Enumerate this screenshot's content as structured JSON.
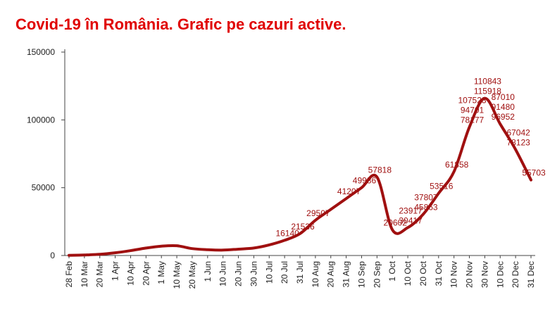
{
  "title": "Covid-19 în România. Grafic pe cazuri active.",
  "colors": {
    "title": "#e00000",
    "series": "#a01010",
    "axis": "#444444",
    "grid": "#bbbbbb"
  },
  "chart_data": {
    "type": "line",
    "title": "Covid-19 în România. Grafic pe cazuri active.",
    "xlabel": "",
    "ylabel": "",
    "ylim": [
      0,
      150000
    ],
    "yticks": [
      0,
      50000,
      100000,
      150000
    ],
    "grid": false,
    "x_tick_labels": [
      "28 Feb",
      "10 Mar",
      "20 Mar",
      "1 Apr",
      "10 Apr",
      "20 Apr",
      "1 May",
      "10 May",
      "20 May",
      "1 Jun",
      "10 Jun",
      "20 Jun",
      "30 Jun",
      "10 Jul",
      "20 Jul",
      "31 Jul",
      "10 Aug",
      "20 Aug",
      "31 Aug",
      "10 Sep",
      "20 Sep",
      "1 Oct",
      "10 Oct",
      "20 Oct",
      "31 Oct",
      "10 Nov",
      "20 Nov",
      "30 Nov",
      "10 Dec",
      "20 Dec",
      "31 Dec"
    ],
    "series": [
      {
        "values": [
          100,
          400,
          900,
          2000,
          3600,
          5500,
          6900,
          7200,
          5100,
          4300,
          4000,
          4700,
          5500,
          7800,
          11200,
          16100,
          26000,
          34000,
          42000,
          50000,
          57818,
          18900,
          20600,
          30417,
          45863,
          61858,
          94701,
          115918,
          96952,
          78123,
          55703
        ],
        "visible_labels": [
          {
            "index": 20,
            "text": "57818"
          },
          {
            "index": 25,
            "text": "61858"
          },
          {
            "index": 24,
            "text": "53516"
          },
          {
            "index": 23,
            "text": "45863"
          },
          {
            "index": 23,
            "text": "37807"
          },
          {
            "index": 22,
            "text": "30417"
          },
          {
            "index": 22,
            "text": "23917"
          },
          {
            "index": 21,
            "text": "20602"
          },
          {
            "index": 26,
            "text": "78177"
          },
          {
            "index": 26,
            "text": "94701"
          },
          {
            "index": 26,
            "text": "107523"
          },
          {
            "index": 27,
            "text": "115918"
          },
          {
            "index": 27,
            "text": "110843"
          },
          {
            "index": 28,
            "text": "96952"
          },
          {
            "index": 28,
            "text": "91480"
          },
          {
            "index": 28,
            "text": "87010"
          },
          {
            "index": 29,
            "text": "78123"
          },
          {
            "index": 29,
            "text": "67042"
          },
          {
            "index": 30,
            "text": "55703"
          },
          {
            "index": 19,
            "text": "49986"
          },
          {
            "index": 18,
            "text": "41207"
          },
          {
            "index": 16,
            "text": "29507"
          },
          {
            "index": 15,
            "text": "21536"
          },
          {
            "index": 14,
            "text": "16140"
          }
        ]
      }
    ]
  }
}
